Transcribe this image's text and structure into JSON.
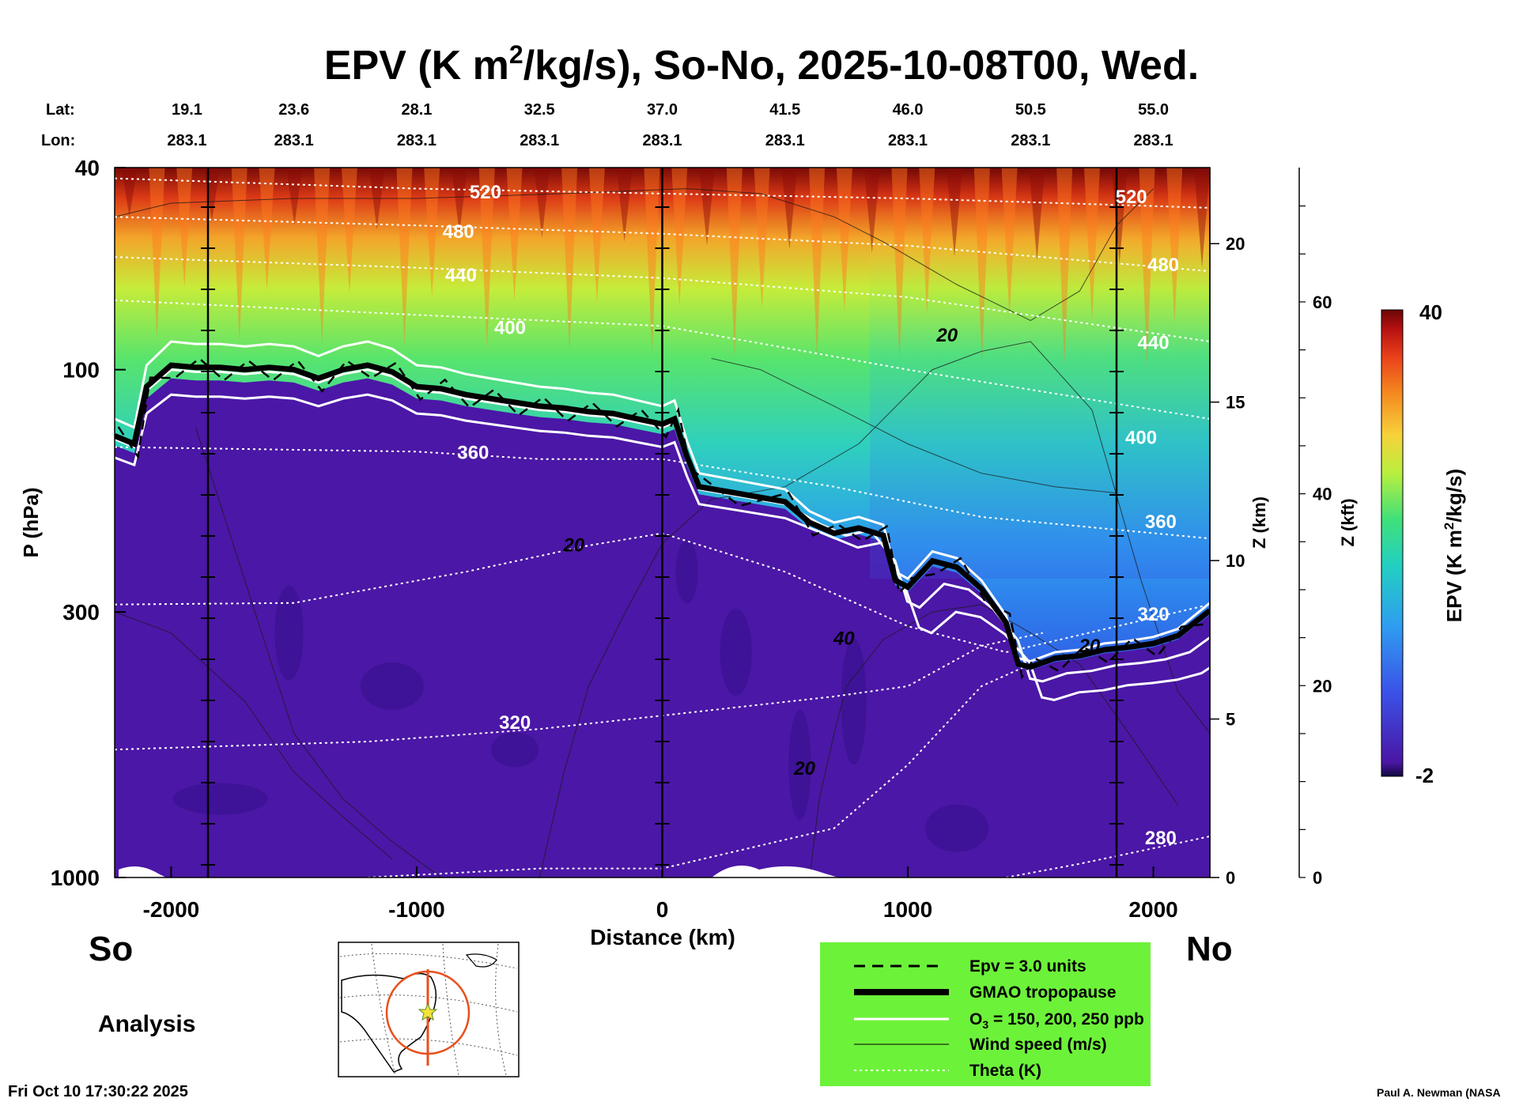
{
  "chart_data": {
    "type": "heatmap",
    "title": "EPV (K m²/kg/s), So-No, 2025-10-08T00, Wed.",
    "title_parts": {
      "pre": "EPV (K m",
      "sup": "2",
      "post": "/kg/s), So-No, 2025-10-08T00, Wed."
    },
    "xlabel": "Distance (km)",
    "ylabel": "P (hPa)",
    "xlim": [
      -2230,
      2230
    ],
    "ylim": [
      1000,
      40
    ],
    "xticks": [
      -2000,
      -1000,
      0,
      1000,
      2000
    ],
    "xtick_labels": [
      "-2000",
      "-1000",
      "0",
      "1000",
      "2000"
    ],
    "yticks": [
      40,
      100,
      300,
      1000
    ],
    "ytick_labels": [
      "40",
      "100",
      "300",
      "1000"
    ],
    "lat_label": "Lat:",
    "lon_label": "Lon:",
    "lat_values": [
      "19.1",
      "23.6",
      "28.1",
      "32.5",
      "37.0",
      "41.5",
      "46.0",
      "50.5",
      "55.0"
    ],
    "lon_values": [
      "283.1",
      "283.1",
      "283.1",
      "283.1",
      "283.1",
      "283.1",
      "283.1",
      "283.1",
      "283.1"
    ],
    "station_distances": [
      -2000,
      -1500,
      -1000,
      -500,
      0,
      500,
      1000,
      1500,
      2000
    ],
    "vertical_markers_km": [
      -1850,
      0,
      1850
    ],
    "z_km_axis": {
      "label": "Z (km)",
      "ticks": [
        0,
        5,
        10,
        15,
        20
      ],
      "tick_labels": [
        "0",
        "5",
        "10",
        "15",
        "20"
      ]
    },
    "z_kft_axis": {
      "label": "Z (kft)",
      "ticks": [
        0,
        20,
        40,
        60
      ],
      "tick_labels": [
        "0",
        "20",
        "40",
        "60"
      ]
    },
    "colorbar": {
      "label": "EPV (K m²/kg/s)",
      "label_parts": {
        "pre": "EPV (K m",
        "sup": "2",
        "post": "/kg/s)"
      },
      "min": -2,
      "max": 40,
      "min_label": "-2",
      "max_label": "40",
      "colors": [
        "#1c0a4c",
        "#4a16a4",
        "#3b52e8",
        "#2f9cf0",
        "#22cfc2",
        "#3fe07a",
        "#b8ef3e",
        "#f6d33a",
        "#f58a20",
        "#e8401a",
        "#b51010",
        "#6a0606"
      ]
    },
    "tropopause_km": [
      [
        -2230,
        135
      ],
      [
        -2150,
        140
      ],
      [
        -2100,
        108
      ],
      [
        -2000,
        98
      ],
      [
        -1900,
        99
      ],
      [
        -1800,
        99
      ],
      [
        -1700,
        100
      ],
      [
        -1600,
        99
      ],
      [
        -1500,
        100
      ],
      [
        -1400,
        104
      ],
      [
        -1300,
        100
      ],
      [
        -1200,
        98
      ],
      [
        -1100,
        101
      ],
      [
        -1000,
        108
      ],
      [
        -900,
        109
      ],
      [
        -800,
        112
      ],
      [
        -700,
        114
      ],
      [
        -600,
        116
      ],
      [
        -500,
        118
      ],
      [
        -400,
        119
      ],
      [
        -300,
        121
      ],
      [
        -200,
        122
      ],
      [
        -100,
        125
      ],
      [
        0,
        128
      ],
      [
        50,
        125
      ],
      [
        100,
        148
      ],
      [
        150,
        170
      ],
      [
        300,
        175
      ],
      [
        500,
        182
      ],
      [
        600,
        200
      ],
      [
        700,
        210
      ],
      [
        800,
        205
      ],
      [
        900,
        212
      ],
      [
        950,
        260
      ],
      [
        1000,
        268
      ],
      [
        1100,
        238
      ],
      [
        1200,
        245
      ],
      [
        1300,
        270
      ],
      [
        1400,
        315
      ],
      [
        1450,
        380
      ],
      [
        1500,
        385
      ],
      [
        1600,
        370
      ],
      [
        1700,
        366
      ],
      [
        1800,
        356
      ],
      [
        1900,
        352
      ],
      [
        2000,
        346
      ],
      [
        2100,
        334
      ],
      [
        2230,
        298
      ]
    ],
    "contour_labels": [
      {
        "text": "520",
        "x_km": -720,
        "p_hpa": 46
      },
      {
        "text": "480",
        "x_km": -830,
        "p_hpa": 55
      },
      {
        "text": "440",
        "x_km": -820,
        "p_hpa": 67
      },
      {
        "text": "400",
        "x_km": -620,
        "p_hpa": 85
      },
      {
        "text": "360",
        "x_km": -770,
        "p_hpa": 150
      },
      {
        "text": "320",
        "x_km": -600,
        "p_hpa": 510
      },
      {
        "text": "20",
        "x_km": 1160,
        "p_hpa": 88
      },
      {
        "text": "20",
        "x_km": -360,
        "p_hpa": 228
      },
      {
        "text": "40",
        "x_km": 740,
        "p_hpa": 348
      },
      {
        "text": "20",
        "x_km": 580,
        "p_hpa": 628
      },
      {
        "text": "20",
        "x_km": 1740,
        "p_hpa": 360
      },
      {
        "text": "520",
        "x_km": 1910,
        "p_hpa": 47
      },
      {
        "text": "480",
        "x_km": 2040,
        "p_hpa": 64
      },
      {
        "text": "440",
        "x_km": 2000,
        "p_hpa": 91
      },
      {
        "text": "400",
        "x_km": 1950,
        "p_hpa": 140
      },
      {
        "text": "360",
        "x_km": 2030,
        "p_hpa": 205
      },
      {
        "text": "320",
        "x_km": 2000,
        "p_hpa": 312
      },
      {
        "text": "280",
        "x_km": 2030,
        "p_hpa": 860
      }
    ],
    "theta_levels_K": [
      520,
      480,
      440,
      400,
      360,
      320,
      280
    ]
  },
  "footer": {
    "left_region": "So",
    "right_region": "No",
    "analysis_label": "Analysis",
    "timestamp": "Fri Oct 10 17:30:22 2025",
    "credit": "Paul A. Newman (NASA"
  },
  "legend": {
    "bg_color": "#6df23a",
    "items": [
      {
        "style": "dashed",
        "label": "Epv = 3.0 units"
      },
      {
        "style": "thick",
        "label": "GMAO tropopause"
      },
      {
        "style": "white-double",
        "label_pre": "O",
        "label_sub": "3",
        "label_post": " = 150, 200, 250 ppb"
      },
      {
        "style": "thin",
        "label": "Wind speed (m/s)"
      },
      {
        "style": "dotted",
        "label": "Theta (K)"
      }
    ]
  }
}
